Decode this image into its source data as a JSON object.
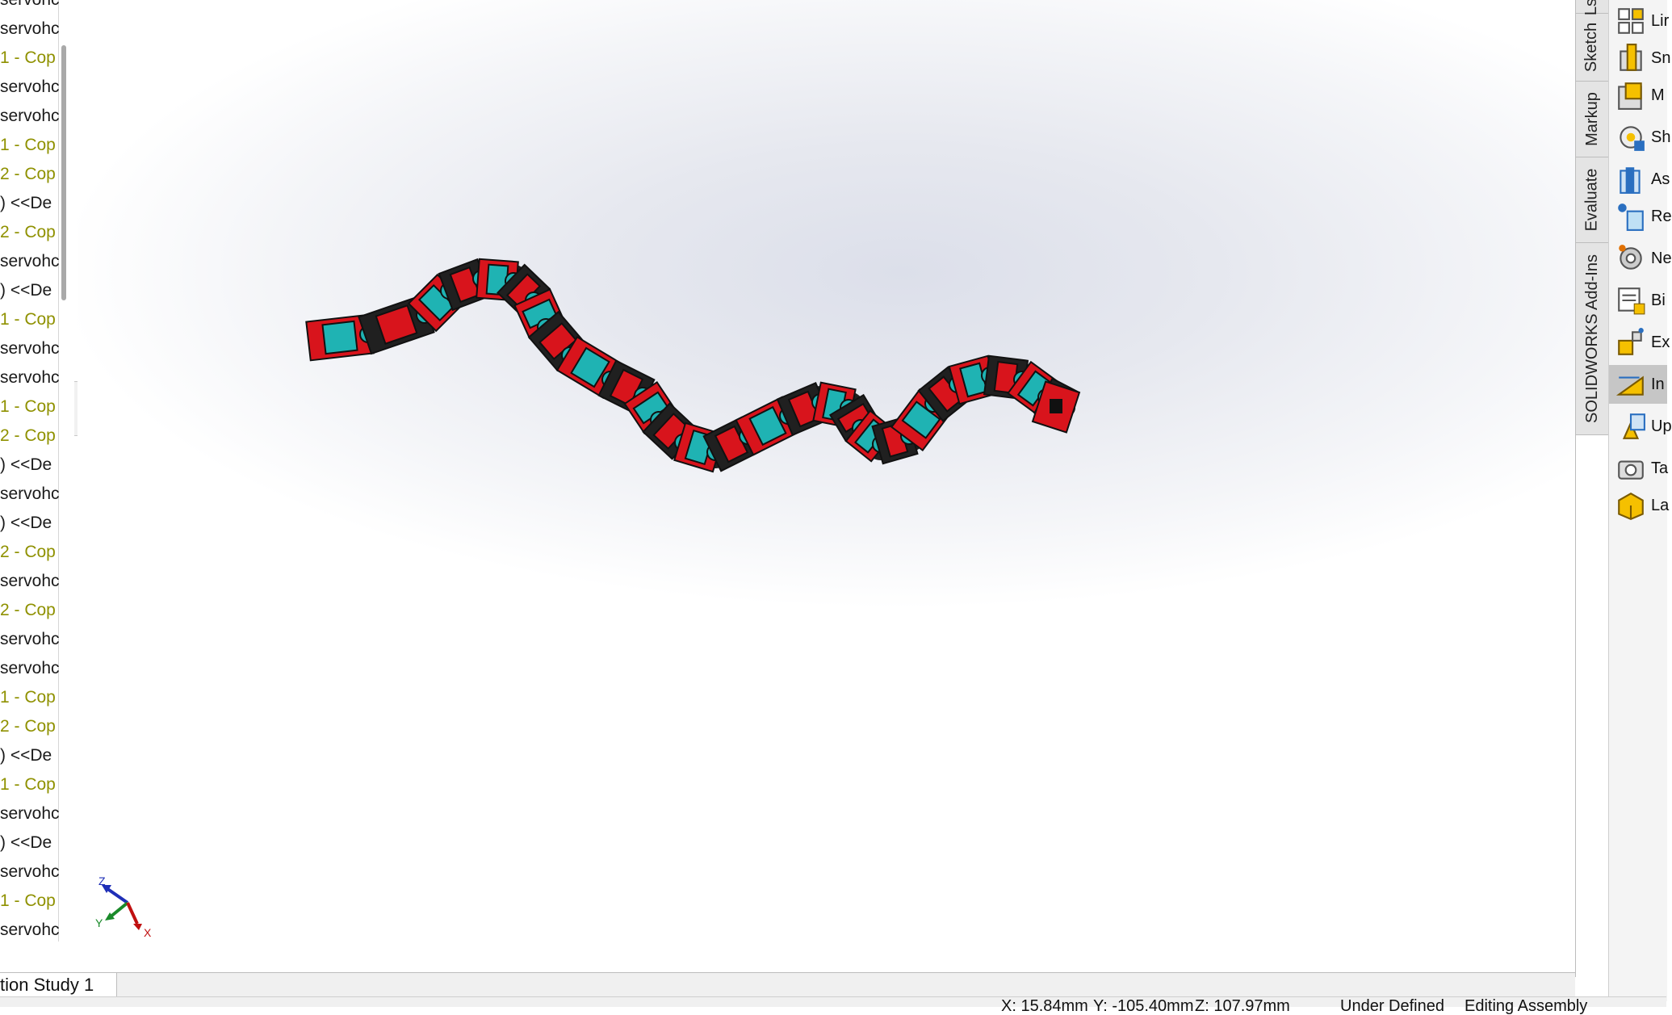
{
  "feature_tree": {
    "items": [
      {
        "text": "servohc",
        "kind": "normal"
      },
      {
        "text": "servohc",
        "kind": "normal"
      },
      {
        "text": "1 - Cop",
        "kind": "copy"
      },
      {
        "text": "servohc",
        "kind": "normal"
      },
      {
        "text": "servohc",
        "kind": "normal"
      },
      {
        "text": "1 - Cop",
        "kind": "copy"
      },
      {
        "text": "2 - Cop",
        "kind": "copy"
      },
      {
        "text": ") <<De",
        "kind": "normal"
      },
      {
        "text": "2 - Cop",
        "kind": "copy"
      },
      {
        "text": "servohc",
        "kind": "normal"
      },
      {
        "text": ") <<De",
        "kind": "normal"
      },
      {
        "text": "1 - Cop",
        "kind": "copy"
      },
      {
        "text": "servohc",
        "kind": "normal"
      },
      {
        "text": "servohc",
        "kind": "normal"
      },
      {
        "text": "1 - Cop",
        "kind": "copy"
      },
      {
        "text": "2 - Cop",
        "kind": "copy"
      },
      {
        "text": ") <<De",
        "kind": "normal"
      },
      {
        "text": "servohc",
        "kind": "normal"
      },
      {
        "text": ") <<De",
        "kind": "normal"
      },
      {
        "text": "2 - Cop",
        "kind": "copy"
      },
      {
        "text": "servohc",
        "kind": "normal"
      },
      {
        "text": "2 - Cop",
        "kind": "copy"
      },
      {
        "text": "servohc",
        "kind": "normal"
      },
      {
        "text": "servohc",
        "kind": "normal"
      },
      {
        "text": "1 - Cop",
        "kind": "copy"
      },
      {
        "text": "2 - Cop",
        "kind": "copy"
      },
      {
        "text": ") <<De",
        "kind": "normal"
      },
      {
        "text": "1 - Cop",
        "kind": "copy"
      },
      {
        "text": "servohc",
        "kind": "normal"
      },
      {
        "text": ") <<De",
        "kind": "normal"
      },
      {
        "text": "servohc",
        "kind": "normal"
      },
      {
        "text": "1 - Cop",
        "kind": "copy"
      },
      {
        "text": "servohc",
        "kind": "normal"
      }
    ]
  },
  "vertical_tabs": [
    {
      "label": "Ls"
    },
    {
      "label": "Sketch"
    },
    {
      "label": "Markup"
    },
    {
      "label": "Evaluate"
    },
    {
      "label": "SOLIDWORKS Add-Ins"
    }
  ],
  "command_panel": {
    "items": [
      {
        "label": "Lir",
        "icon": "linear-pattern-icon",
        "active": false
      },
      {
        "label": "Sn",
        "icon": "smart-fasteners-icon",
        "active": false
      },
      {
        "label": "M",
        "icon": "move-component-icon",
        "active": false
      },
      {
        "label": "Sh",
        "icon": "show-hidden-icon",
        "active": false
      },
      {
        "label": "As",
        "icon": "assembly-features-icon",
        "active": false
      },
      {
        "label": "Re",
        "icon": "reference-geometry-icon",
        "active": false
      },
      {
        "label": "Ne",
        "icon": "new-motion-study-icon",
        "active": false
      },
      {
        "label": "Bi",
        "icon": "bill-of-materials-icon",
        "active": false
      },
      {
        "label": "Ex",
        "icon": "exploded-view-icon",
        "active": false
      },
      {
        "label": "In",
        "icon": "instant3d-icon",
        "active": true
      },
      {
        "label": "Up",
        "icon": "update-speedpak-icon",
        "active": false
      },
      {
        "label": "Ta",
        "icon": "take-snapshot-icon",
        "active": false
      },
      {
        "label": "La",
        "icon": "large-assembly-icon",
        "active": false
      }
    ]
  },
  "bottom_tabs": {
    "study_tab": "tion Study 1"
  },
  "status_bar": {
    "x": "X: 15.84mm",
    "y": "Y: -105.40mm",
    "z": "Z: 107.97mm",
    "state": "Under Defined",
    "mode": "Editing Assembly"
  },
  "triad": {
    "x_label": "X",
    "y_label": "Y",
    "z_label": "Z"
  },
  "colors": {
    "body_red": "#d8141c",
    "servo_cyan": "#1fb3b3",
    "dark": "#202020",
    "copy_text": "#8f9100"
  }
}
